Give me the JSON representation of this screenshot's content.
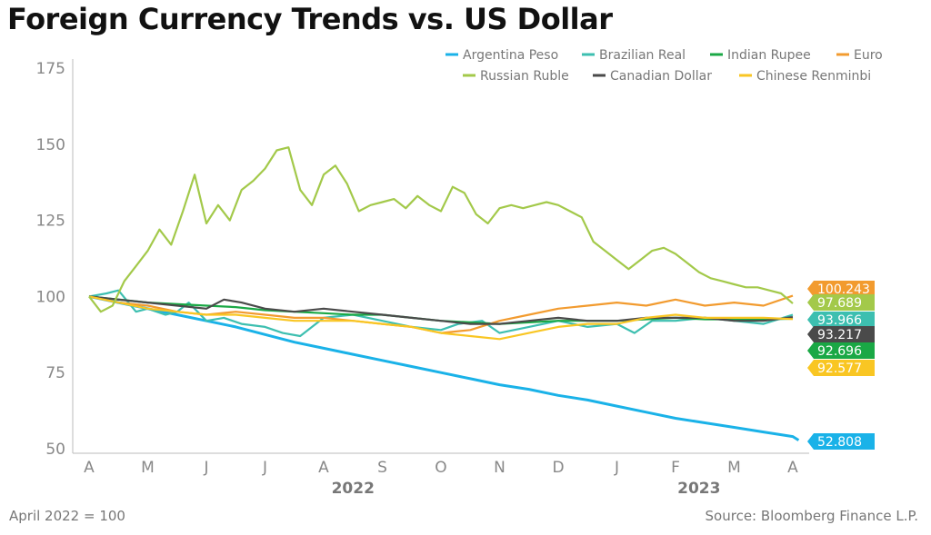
{
  "title": "Foreign Currency Trends vs. US Dollar",
  "footer": {
    "note": "April 2022 = 100",
    "source": "Source: Bloomberg Finance L.P."
  },
  "chart_data": {
    "type": "line",
    "x_months": [
      "A",
      "M",
      "J",
      "J",
      "A",
      "S",
      "O",
      "N",
      "D",
      "J",
      "F",
      "M",
      "A"
    ],
    "x_years": [
      {
        "label": "2022",
        "at_month_index": 4.5
      },
      {
        "label": "2023",
        "at_month_index": 10.4
      }
    ],
    "y_ticks": [
      50,
      75,
      100,
      125,
      150,
      175
    ],
    "ylim": [
      50,
      175
    ],
    "legend_position": "top-right",
    "series": [
      {
        "name": "Argentina Peso",
        "color": "#1ab2e8",
        "end_label": "52.808",
        "points": [
          [
            0,
            100
          ],
          [
            0.5,
            98
          ],
          [
            1,
            96
          ],
          [
            1.5,
            94
          ],
          [
            2,
            92
          ],
          [
            2.5,
            90
          ],
          [
            3,
            87.5
          ],
          [
            3.5,
            85
          ],
          [
            4,
            83
          ],
          [
            4.5,
            81
          ],
          [
            5,
            79
          ],
          [
            5.5,
            77
          ],
          [
            6,
            75
          ],
          [
            6.5,
            73
          ],
          [
            7,
            71
          ],
          [
            7.5,
            69.5
          ],
          [
            8,
            67.5
          ],
          [
            8.5,
            66
          ],
          [
            9,
            64
          ],
          [
            9.5,
            62
          ],
          [
            10,
            60
          ],
          [
            10.5,
            58.5
          ],
          [
            11,
            57
          ],
          [
            11.5,
            55.5
          ],
          [
            12,
            54
          ],
          [
            12.1,
            52.808
          ]
        ]
      },
      {
        "name": "Brazilian Real",
        "color": "#3dbfb0",
        "end_label": "93.966",
        "points": [
          [
            0,
            100
          ],
          [
            0.3,
            101
          ],
          [
            0.5,
            102
          ],
          [
            0.8,
            95
          ],
          [
            1,
            96
          ],
          [
            1.3,
            94
          ],
          [
            1.5,
            95
          ],
          [
            1.7,
            98
          ],
          [
            2,
            92
          ],
          [
            2.3,
            93
          ],
          [
            2.6,
            91
          ],
          [
            3,
            90
          ],
          [
            3.3,
            88
          ],
          [
            3.6,
            87
          ],
          [
            4,
            93
          ],
          [
            4.5,
            94
          ],
          [
            5,
            92
          ],
          [
            5.5,
            90
          ],
          [
            6,
            89
          ],
          [
            6.3,
            91
          ],
          [
            6.7,
            92
          ],
          [
            7,
            88
          ],
          [
            7.5,
            90
          ],
          [
            8,
            92
          ],
          [
            8.5,
            90
          ],
          [
            9,
            91
          ],
          [
            9.3,
            88
          ],
          [
            9.6,
            92
          ],
          [
            10,
            92
          ],
          [
            10.5,
            93
          ],
          [
            11,
            92
          ],
          [
            11.5,
            91
          ],
          [
            12,
            93.966
          ]
        ]
      },
      {
        "name": "Indian Rupee",
        "color": "#1aa845",
        "end_label": "92.696",
        "points": [
          [
            0,
            100
          ],
          [
            1,
            98
          ],
          [
            2,
            97
          ],
          [
            2.5,
            96.5
          ],
          [
            3,
            95.5
          ],
          [
            3.5,
            95
          ],
          [
            4,
            94.5
          ],
          [
            4.5,
            94
          ],
          [
            5,
            94
          ],
          [
            5.5,
            93
          ],
          [
            6,
            92
          ],
          [
            6.5,
            91.5
          ],
          [
            7,
            91
          ],
          [
            7.5,
            91.5
          ],
          [
            8,
            92
          ],
          [
            8.5,
            92
          ],
          [
            9,
            92
          ],
          [
            9.5,
            92.5
          ],
          [
            10,
            93
          ],
          [
            10.5,
            92.5
          ],
          [
            11,
            92.5
          ],
          [
            11.5,
            92.5
          ],
          [
            12,
            92.696
          ]
        ]
      },
      {
        "name": "Euro",
        "color": "#f29b2f",
        "end_label": "100.243",
        "points": [
          [
            0,
            100
          ],
          [
            0.5,
            98
          ],
          [
            1,
            97
          ],
          [
            1.5,
            95
          ],
          [
            2,
            94
          ],
          [
            2.5,
            95
          ],
          [
            3,
            94
          ],
          [
            3.5,
            93
          ],
          [
            4,
            93
          ],
          [
            4.5,
            92
          ],
          [
            5,
            91
          ],
          [
            5.5,
            90
          ],
          [
            6,
            88
          ],
          [
            6.5,
            89
          ],
          [
            7,
            92
          ],
          [
            7.5,
            94
          ],
          [
            8,
            96
          ],
          [
            8.5,
            97
          ],
          [
            9,
            98
          ],
          [
            9.5,
            97
          ],
          [
            10,
            99
          ],
          [
            10.5,
            97
          ],
          [
            11,
            98
          ],
          [
            11.5,
            97
          ],
          [
            12,
            100.243
          ]
        ]
      },
      {
        "name": "Russian Ruble",
        "color": "#a3c94a",
        "end_label": "97.689",
        "points": [
          [
            0,
            100
          ],
          [
            0.2,
            95
          ],
          [
            0.4,
            97
          ],
          [
            0.6,
            105
          ],
          [
            0.8,
            110
          ],
          [
            1,
            115
          ],
          [
            1.2,
            122
          ],
          [
            1.4,
            117
          ],
          [
            1.6,
            128
          ],
          [
            1.8,
            140
          ],
          [
            2,
            124
          ],
          [
            2.2,
            130
          ],
          [
            2.4,
            125
          ],
          [
            2.6,
            135
          ],
          [
            2.8,
            138
          ],
          [
            3,
            142
          ],
          [
            3.2,
            148
          ],
          [
            3.4,
            149
          ],
          [
            3.6,
            135
          ],
          [
            3.8,
            130
          ],
          [
            4,
            140
          ],
          [
            4.2,
            143
          ],
          [
            4.4,
            137
          ],
          [
            4.6,
            128
          ],
          [
            4.8,
            130
          ],
          [
            5,
            131
          ],
          [
            5.2,
            132
          ],
          [
            5.4,
            129
          ],
          [
            5.6,
            133
          ],
          [
            5.8,
            130
          ],
          [
            6,
            128
          ],
          [
            6.2,
            136
          ],
          [
            6.4,
            134
          ],
          [
            6.6,
            127
          ],
          [
            6.8,
            124
          ],
          [
            7,
            129
          ],
          [
            7.2,
            130
          ],
          [
            7.4,
            129
          ],
          [
            7.6,
            130
          ],
          [
            7.8,
            131
          ],
          [
            8,
            130
          ],
          [
            8.2,
            128
          ],
          [
            8.4,
            126
          ],
          [
            8.6,
            118
          ],
          [
            8.8,
            115
          ],
          [
            9,
            112
          ],
          [
            9.2,
            109
          ],
          [
            9.4,
            112
          ],
          [
            9.6,
            115
          ],
          [
            9.8,
            116
          ],
          [
            10,
            114
          ],
          [
            10.2,
            111
          ],
          [
            10.4,
            108
          ],
          [
            10.6,
            106
          ],
          [
            10.8,
            105
          ],
          [
            11,
            104
          ],
          [
            11.2,
            103
          ],
          [
            11.4,
            103
          ],
          [
            11.6,
            102
          ],
          [
            11.8,
            101
          ],
          [
            12,
            97.689
          ]
        ]
      },
      {
        "name": "Canadian Dollar",
        "color": "#4a4a4a",
        "end_label": "93.217",
        "points": [
          [
            0,
            100
          ],
          [
            0.5,
            99
          ],
          [
            1,
            98
          ],
          [
            1.5,
            97
          ],
          [
            2,
            96
          ],
          [
            2.3,
            99
          ],
          [
            2.6,
            98
          ],
          [
            3,
            96
          ],
          [
            3.5,
            95
          ],
          [
            4,
            96
          ],
          [
            4.5,
            95
          ],
          [
            5,
            94
          ],
          [
            5.5,
            93
          ],
          [
            6,
            92
          ],
          [
            6.5,
            91
          ],
          [
            7,
            91
          ],
          [
            7.5,
            92
          ],
          [
            8,
            93
          ],
          [
            8.5,
            92
          ],
          [
            9,
            92
          ],
          [
            9.5,
            93
          ],
          [
            10,
            93
          ],
          [
            10.5,
            93
          ],
          [
            11,
            92
          ],
          [
            11.5,
            92
          ],
          [
            12,
            93.217
          ]
        ]
      },
      {
        "name": "Chinese Renminbi",
        "color": "#f9c623",
        "end_label": "92.577",
        "points": [
          [
            0,
            100
          ],
          [
            0.5,
            98
          ],
          [
            1,
            96
          ],
          [
            1.5,
            95
          ],
          [
            2,
            94
          ],
          [
            2.5,
            94
          ],
          [
            3,
            93
          ],
          [
            3.5,
            92
          ],
          [
            4,
            92
          ],
          [
            4.5,
            92
          ],
          [
            5,
            91
          ],
          [
            5.5,
            90
          ],
          [
            6,
            88
          ],
          [
            6.5,
            87
          ],
          [
            7,
            86
          ],
          [
            7.5,
            88
          ],
          [
            8,
            90
          ],
          [
            8.5,
            91
          ],
          [
            9,
            91
          ],
          [
            9.5,
            93
          ],
          [
            10,
            94
          ],
          [
            10.5,
            93
          ],
          [
            11,
            93
          ],
          [
            11.5,
            93
          ],
          [
            12,
            92.577
          ]
        ]
      }
    ]
  }
}
